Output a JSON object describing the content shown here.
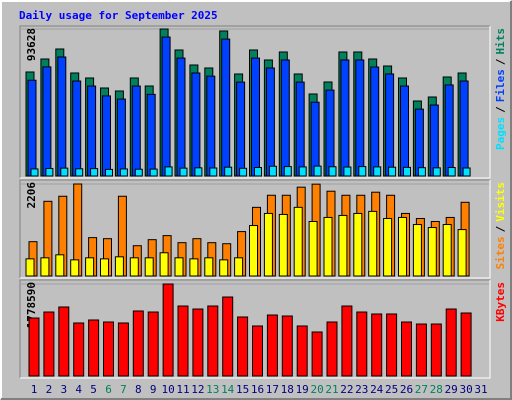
{
  "chart_data": [
    {
      "type": "bar",
      "title": "Daily usage for September 2025",
      "ylim": [
        0,
        93628
      ],
      "yticks": [
        93628
      ],
      "legend_separator": "/",
      "series": [
        {
          "name": "Pages",
          "color": "#00e0ff",
          "values": [
            4500,
            4800,
            5000,
            4600,
            4700,
            4200,
            4500,
            4300,
            4400,
            5800,
            5000,
            5200,
            5100,
            5600,
            4900,
            5400,
            6200,
            6000,
            5800,
            6300,
            5900,
            5700,
            6000,
            5800,
            5600,
            5500,
            5300,
            5200,
            5400,
            5100,
            null
          ]
        },
        {
          "name": "Files",
          "color": "#0040ff",
          "values": [
            61000,
            69500,
            75800,
            60500,
            57300,
            51000,
            49000,
            57300,
            52000,
            88500,
            75100,
            65600,
            63600,
            87200,
            59800,
            75100,
            68800,
            73900,
            59800,
            47000,
            54700,
            73900,
            73900,
            69400,
            65000,
            57300,
            42600,
            45200,
            58000,
            60500,
            null
          ]
        },
        {
          "name": "Hits",
          "color": "#00805c",
          "values": [
            66248,
            74529,
            80899,
            65611,
            62426,
            56056,
            54145,
            62426,
            57330,
            93628,
            80262,
            70707,
            68796,
            92365,
            64974,
            80262,
            73892,
            78988,
            64974,
            52234,
            59878,
            78988,
            78988,
            74529,
            70070,
            62426,
            47775,
            50323,
            63063,
            65611,
            null
          ]
        }
      ]
    },
    {
      "type": "bar",
      "ylim": [
        0,
        2206
      ],
      "yticks": [
        2206
      ],
      "legend_separator": "/",
      "series": [
        {
          "name": "Sites",
          "color": "#ff8000",
          "values": [
            823,
            1791,
            1912,
            2206,
            920,
            895,
            1912,
            726,
            871,
            968,
            799,
            895,
            799,
            774,
            1065,
            1646,
            1936,
            1936,
            2130,
            2202,
            2033,
            1936,
            1936,
            2009,
            1936,
            1500,
            1379,
            1307,
            1404,
            1767,
            null
          ]
        },
        {
          "name": "Visits",
          "color": "#ffff00",
          "values": [
            411,
            436,
            508,
            387,
            436,
            411,
            460,
            436,
            436,
            557,
            436,
            411,
            436,
            387,
            436,
            1210,
            1500,
            1476,
            1646,
            1307,
            1404,
            1452,
            1500,
            1549,
            1379,
            1404,
            1234,
            1162,
            1234,
            1113,
            null
          ]
        }
      ]
    },
    {
      "type": "bar",
      "ylim": [
        0,
        1778590
      ],
      "yticks": [
        1778590
      ],
      "categories": [
        "1",
        "2",
        "3",
        "4",
        "5",
        "6",
        "7",
        "8",
        "9",
        "10",
        "11",
        "12",
        "13",
        "14",
        "15",
        "16",
        "17",
        "18",
        "19",
        "20",
        "21",
        "22",
        "23",
        "24",
        "25",
        "26",
        "27",
        "28",
        "29",
        "30",
        "31"
      ],
      "category_colors": [
        "#000080",
        "#000080",
        "#000080",
        "#000080",
        "#000080",
        "#00805c",
        "#00805c",
        "#000080",
        "#000080",
        "#000080",
        "#000080",
        "#000080",
        "#00805c",
        "#00805c",
        "#000080",
        "#000080",
        "#000080",
        "#000080",
        "#000080",
        "#00805c",
        "#00805c",
        "#000080",
        "#000080",
        "#000080",
        "#000080",
        "#000080",
        "#00805c",
        "#00805c",
        "#000080",
        "#000080",
        "#000080"
      ],
      "series": [
        {
          "name": "KBytes",
          "color": "#ff0000",
          "values": [
            1121000,
            1237000,
            1334000,
            1025000,
            1083000,
            1044000,
            1025000,
            1257000,
            1237000,
            1778590,
            1353000,
            1295000,
            1353000,
            1527000,
            1141000,
            967000,
            1179000,
            1160000,
            967000,
            851000,
            1044000,
            1353000,
            1237000,
            1199000,
            1199000,
            1044000,
            1005000,
            1005000,
            1295000,
            1218000,
            null
          ]
        }
      ]
    }
  ]
}
